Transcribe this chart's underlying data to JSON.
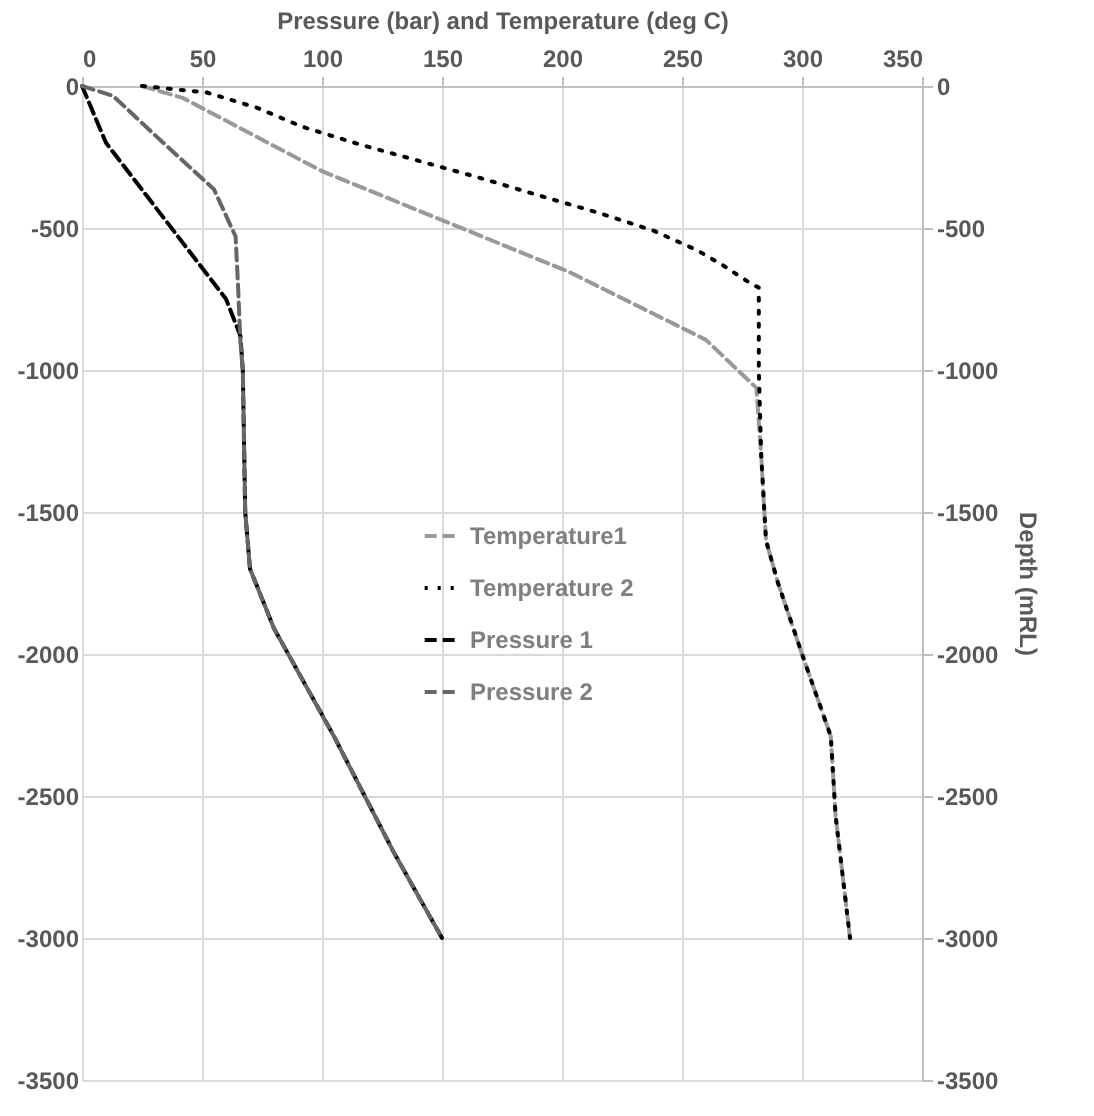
{
  "chart_data": {
    "type": "line",
    "xlabel": "Pressure (bar) and Temperature (deg C)",
    "y2label": "Depth (mRL)",
    "xlim": [
      0,
      350
    ],
    "xticks": [
      0,
      50,
      100,
      150,
      200,
      250,
      300,
      350
    ],
    "ylim": [
      -3500,
      0
    ],
    "yticks": [
      0,
      -500,
      -1000,
      -1500,
      -2000,
      -2500,
      -3000,
      -3500
    ],
    "y2lim": [
      -3500,
      0
    ],
    "y2ticks": [
      0,
      -500,
      -1000,
      -1500,
      -2000,
      -2500,
      -3000,
      -3500
    ],
    "grid": true,
    "legend": "center",
    "series": [
      {
        "name": "Temperature1",
        "color": "#999999",
        "line_style": "dashed",
        "x": [
          25,
          42,
          100,
          203,
          260,
          281,
          283,
          285,
          290,
          300,
          312,
          314,
          320
        ],
        "values": [
          0,
          -42,
          -300,
          -655,
          -894,
          -1063,
          -1300,
          -1600,
          -1750,
          -2000,
          -2290,
          -2570,
          -3000
        ]
      },
      {
        "name": "Temperature 2",
        "color": "#000000",
        "line_style": "dotted",
        "x": [
          25,
          52,
          73,
          92,
          115,
          141,
          166,
          191,
          215,
          238,
          256,
          267,
          278,
          282,
          282,
          283,
          285,
          290,
          300,
          312,
          314,
          320
        ],
        "values": [
          0,
          -23,
          -77,
          -144,
          -204,
          -265,
          -324,
          -387,
          -446,
          -509,
          -577,
          -631,
          -692,
          -710,
          -1000,
          -1300,
          -1600,
          -1750,
          -2000,
          -2290,
          -2570,
          -3000
        ]
      },
      {
        "name": "Pressure 1",
        "color": "#000000",
        "line_style": "dashed",
        "x": [
          0,
          5,
          10,
          30,
          50,
          60,
          66,
          67,
          68,
          70,
          80,
          105,
          130,
          150
        ],
        "values": [
          0,
          -100,
          -200,
          -420,
          -640,
          -750,
          -880,
          -1000,
          -1500,
          -1700,
          -1910,
          -2290,
          -2700,
          -3000
        ]
      },
      {
        "name": "Pressure 2",
        "color": "#666666",
        "line_style": "dashed",
        "x": [
          0,
          13,
          30,
          55,
          64,
          65,
          66,
          67,
          68,
          70,
          80,
          105,
          130,
          150
        ],
        "values": [
          0,
          -35,
          -170,
          -364,
          -530,
          -700,
          -900,
          -1000,
          -1500,
          -1700,
          -1910,
          -2290,
          -2700,
          -3000
        ]
      }
    ]
  }
}
